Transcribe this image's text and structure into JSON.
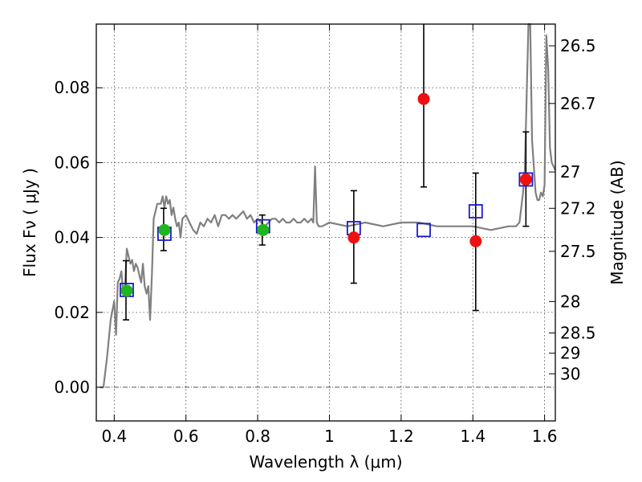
{
  "chart_data": {
    "type": "scatter",
    "xlabel": "Wavelength  λ (μm)",
    "ylabel": "Flux  Fν  ( μJy )",
    "ylabel_right": "Magnitude (AB)",
    "xlim": [
      0.35,
      1.63
    ],
    "ylim": [
      -0.009,
      0.097
    ],
    "grid": true,
    "x_ticks": [
      {
        "value": 0.4,
        "label": "0.4"
      },
      {
        "value": 0.6,
        "label": "0.6"
      },
      {
        "value": 0.8,
        "label": "0.8"
      },
      {
        "value": 1.0,
        "label": "1"
      },
      {
        "value": 1.2,
        "label": "1.2"
      },
      {
        "value": 1.4,
        "label": "1.4"
      },
      {
        "value": 1.6,
        "label": "1.6"
      }
    ],
    "y_ticks": [
      {
        "value": 0.0,
        "label": "0.00"
      },
      {
        "value": 0.02,
        "label": "0.02"
      },
      {
        "value": 0.04,
        "label": "0.04"
      },
      {
        "value": 0.06,
        "label": "0.06"
      },
      {
        "value": 0.08,
        "label": "0.08"
      }
    ],
    "right_ticks": [
      {
        "flux": 0.0912,
        "label": "26.5"
      },
      {
        "flux": 0.0758,
        "label": "26.7"
      },
      {
        "flux": 0.0575,
        "label": "27"
      },
      {
        "flux": 0.0478,
        "label": "27.2"
      },
      {
        "flux": 0.0363,
        "label": "27.5"
      },
      {
        "flux": 0.0229,
        "label": "28"
      },
      {
        "flux": 0.0145,
        "label": "28.5"
      },
      {
        "flux": 0.0091,
        "label": "29"
      },
      {
        "flux": 0.0036,
        "label": "30"
      }
    ],
    "model_spectrum": {
      "color": "#808080",
      "x": [
        0.36,
        0.37,
        0.38,
        0.39,
        0.4,
        0.405,
        0.41,
        0.415,
        0.42,
        0.425,
        0.43,
        0.435,
        0.44,
        0.445,
        0.45,
        0.455,
        0.46,
        0.465,
        0.47,
        0.475,
        0.48,
        0.485,
        0.49,
        0.495,
        0.5,
        0.505,
        0.51,
        0.52,
        0.53,
        0.535,
        0.54,
        0.545,
        0.55,
        0.555,
        0.56,
        0.565,
        0.57,
        0.575,
        0.58,
        0.585,
        0.59,
        0.6,
        0.61,
        0.62,
        0.63,
        0.64,
        0.65,
        0.66,
        0.67,
        0.68,
        0.69,
        0.7,
        0.71,
        0.72,
        0.73,
        0.74,
        0.75,
        0.76,
        0.77,
        0.78,
        0.79,
        0.8,
        0.81,
        0.82,
        0.83,
        0.84,
        0.85,
        0.86,
        0.87,
        0.88,
        0.89,
        0.9,
        0.91,
        0.92,
        0.93,
        0.94,
        0.95,
        0.955,
        0.96,
        0.965,
        0.97,
        0.98,
        1.0,
        1.05,
        1.1,
        1.15,
        1.2,
        1.25,
        1.3,
        1.35,
        1.4,
        1.45,
        1.5,
        1.51,
        1.52,
        1.53,
        1.54,
        1.545,
        1.55,
        1.555,
        1.56,
        1.565,
        1.57,
        1.575,
        1.58,
        1.585,
        1.59,
        1.595,
        1.6,
        1.605,
        1.61,
        1.615,
        1.62,
        1.63
      ],
      "y": [
        0.0,
        0.0,
        0.008,
        0.018,
        0.023,
        0.014,
        0.028,
        0.029,
        0.031,
        0.025,
        0.027,
        0.037,
        0.035,
        0.033,
        0.034,
        0.031,
        0.033,
        0.032,
        0.03,
        0.028,
        0.033,
        0.027,
        0.025,
        0.027,
        0.018,
        0.03,
        0.045,
        0.049,
        0.049,
        0.051,
        0.048,
        0.051,
        0.049,
        0.05,
        0.046,
        0.048,
        0.045,
        0.043,
        0.044,
        0.04,
        0.045,
        0.046,
        0.044,
        0.042,
        0.041,
        0.044,
        0.043,
        0.045,
        0.044,
        0.046,
        0.043,
        0.046,
        0.046,
        0.045,
        0.046,
        0.045,
        0.046,
        0.047,
        0.045,
        0.046,
        0.044,
        0.045,
        0.044,
        0.043,
        0.044,
        0.045,
        0.045,
        0.044,
        0.045,
        0.044,
        0.044,
        0.045,
        0.044,
        0.044,
        0.045,
        0.044,
        0.045,
        0.044,
        0.059,
        0.044,
        0.043,
        0.043,
        0.044,
        0.043,
        0.044,
        0.043,
        0.044,
        0.044,
        0.043,
        0.043,
        0.043,
        0.042,
        0.043,
        0.043,
        0.043,
        0.044,
        0.052,
        0.058,
        0.078,
        0.13,
        0.13,
        0.066,
        0.059,
        0.052,
        0.05,
        0.05,
        0.052,
        0.051,
        0.054,
        0.094,
        0.085,
        0.064,
        0.06,
        0.058
      ]
    },
    "green_points": {
      "color": "#1fb51f",
      "x": [
        0.435,
        0.54,
        0.815
      ],
      "y": [
        0.0258,
        0.042,
        0.042
      ],
      "yerr_low": [
        0.018,
        0.0365,
        0.038
      ],
      "yerr_high": [
        0.0338,
        0.0478,
        0.046
      ]
    },
    "red_points": {
      "color": "#ee1111",
      "x": [
        1.068,
        1.263,
        1.408,
        1.548
      ],
      "y": [
        0.04,
        0.077,
        0.039,
        0.0555
      ],
      "yerr_low": [
        0.0278,
        0.0535,
        0.0205,
        0.043
      ],
      "yerr_high": [
        0.0525,
        0.1,
        0.0572,
        0.0682
      ]
    },
    "blue_squares": {
      "color": "#1a1acc",
      "x": [
        0.435,
        0.54,
        0.815,
        1.068,
        1.263,
        1.408,
        1.548
      ],
      "y": [
        0.026,
        0.041,
        0.043,
        0.0425,
        0.042,
        0.047,
        0.0555
      ]
    }
  }
}
